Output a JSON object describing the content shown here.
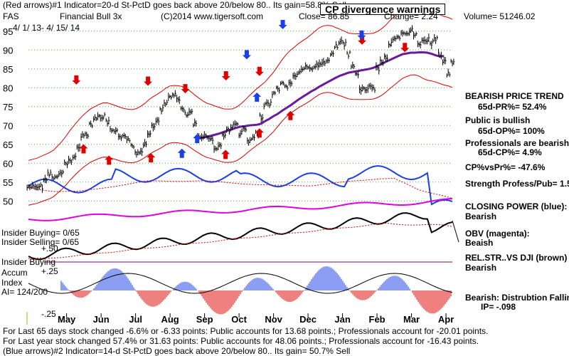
{
  "header": {
    "line1": "(Red arrows)#1 Indicator=20-d St-PctD goes back above 20/below 80.. Its gain=58.8% Sell",
    "symbol": "FAS",
    "name": "Financial Bull 3x",
    "copyright": "(C)2014 www.tigersoft.com",
    "close": "Close= 86.85",
    "change": "Change= 2.24",
    "volume": "Volume= 51246.02",
    "dates": "4/ 1/ 13- 4/ 15/ 14",
    "title_box": "CP divergence warnings"
  },
  "right_panel": {
    "trend_title": "BEARISH PRICE TREND",
    "pr": "65d-PR%= 52.4%",
    "public": "Public is bullish",
    "op": "65d-OP%= 100%",
    "professionals": "Professionals are bearish",
    "cp": "65d-CP%= 4.9%",
    "cpvspr": "CP%vsPr%= -47.6%",
    "strength": "Strength Profess/Pub= 1.5",
    "closing_power": "CLOSING POWER (blue):",
    "closing_power_value": "Bearish",
    "obv": "OBV (magenta):",
    "obv_value": "Beaish",
    "relstr": "REL.STR..VS DJI (brown)",
    "relstr_value": "Bearish",
    "distribution": "Bearish: Distrubtion Falling",
    "ip": "IP= -.098"
  },
  "left_labels": {
    "insider_buying": "Insider Buying= 0/65",
    "insider_selling": "Insider Selling= 0/65",
    "plus50": "+.50",
    "insider_buying2": "Insider Buying",
    "accum": "Accum",
    "plus25": "+.25",
    "index": "Index",
    "ai": "AI= 124/200",
    "minus25": "-.25"
  },
  "footer": {
    "line1": "For Last 65 days stock changed -6.6% or -6.33 points:  Public accounts for  13.68 points.;  Professionals account for -20.01 points.",
    "line2": "For Last year stock changed  57.4% or  31.63 points:  Public accounts for  48.06 points.;  Professionals account for -16.43 points.",
    "line3": "(Blue arrows)#2 Indicator=14-d St-PctD goes back above 20/below 80.. Its gain= 50.7% Sell"
  },
  "chart_data": {
    "type": "bar",
    "title": "CP divergence warnings",
    "ylim": [
      47,
      100
    ],
    "y_ticks": [
      50,
      55,
      60,
      65,
      70,
      75,
      80,
      85,
      90,
      95
    ],
    "x_months": [
      "May",
      "Jun",
      "Jul",
      "Aug",
      "Sep",
      "Oct",
      "Nov",
      "Dec",
      "Jan",
      "Feb",
      "Mar",
      "Apr"
    ],
    "grid": true,
    "price_close": [
      53.6,
      54.1,
      53.3,
      53.8,
      55.5,
      57.3,
      56.2,
      56.9,
      57.4,
      59.8,
      60.7,
      61.4,
      64.6,
      67.1,
      67.7,
      70.4,
      72.1,
      72.2,
      72.4,
      70.9,
      68.6,
      68.2,
      66.6,
      67.6,
      66.4,
      64.4,
      62.8,
      63.2,
      65.3,
      68.2,
      69.6,
      71.4,
      74.3,
      75.6,
      77.6,
      78.4,
      76.8,
      74.2,
      72.9,
      73.2,
      70.3,
      67.0,
      67.4,
      67.1,
      66.2,
      64.0,
      64.7,
      67.5,
      68.8,
      69.9,
      70.2,
      67.9,
      68.9,
      65.7,
      66.4,
      68.1,
      72.3,
      75.6,
      75.8,
      78.4,
      79.8,
      81.0,
      80.3,
      81.4,
      82.9,
      84.0,
      85.1,
      85.3,
      85.0,
      85.8,
      86.1,
      86.8,
      87.4,
      88.7,
      91.2,
      92.1,
      91.5,
      88.9,
      85.6,
      83.7,
      79.4,
      79.7,
      80.2,
      79.8,
      85.1,
      87.0,
      88.1,
      91.6,
      92.7,
      93.1,
      94.1,
      94.4,
      95.3,
      93.9,
      91.8,
      92.8,
      92.7,
      91.9,
      93.0,
      88.9,
      86.8,
      83.6,
      86.9
    ],
    "ma50": [
      null,
      null,
      null,
      null,
      null,
      null,
      null,
      null,
      null,
      null,
      null,
      null,
      null,
      null,
      null,
      null,
      null,
      null,
      null,
      null,
      null,
      null,
      null,
      null,
      null,
      null,
      null,
      null,
      null,
      null,
      null,
      null,
      null,
      null,
      null,
      null,
      null,
      null,
      null,
      null,
      null,
      66.7,
      66.8,
      67.0,
      67.3,
      67.6,
      67.9,
      68.3,
      68.7,
      69.0,
      69.4,
      69.7,
      69.8,
      70.0,
      70.1,
      70.2,
      70.5,
      71.2,
      71.8,
      72.5,
      73.1,
      73.9,
      74.6,
      75.3,
      76.1,
      76.9,
      77.6,
      78.3,
      79.0,
      79.6,
      80.3,
      80.9,
      81.5,
      82.1,
      82.7,
      83.2,
      83.6,
      84.0,
      84.2,
      84.4,
      84.6,
      84.8,
      85.0,
      85.3,
      85.8,
      86.3,
      86.9,
      87.4,
      87.9,
      88.4,
      88.9,
      89.1,
      89.3,
      89.3,
      89.4,
      89.4,
      89.3,
      89.0,
      88.6,
      88.3,
      88.4
    ],
    "signals": {
      "red_down_x": [
        0.113,
        0.282,
        0.37,
        0.466,
        0.545,
        0.787,
        0.888
      ],
      "red_up_x": [
        0.13,
        0.19,
        0.289,
        0.465,
        0.545,
        0.618
      ],
      "blue_down_x": [
        0.515,
        0.6,
        0.786
      ],
      "blue_up_x": [
        0.362,
        0.398,
        0.539
      ],
      "red_down_y": [
        81.4,
        81.1,
        79.1,
        82.5,
        83.7,
        92.0,
        90.0
      ],
      "red_up_y": [
        64.5,
        61.5,
        62.1,
        63.0,
        68.7,
        73.3
      ],
      "blue_down_y": [
        88.1,
        96.1,
        93.3
      ],
      "blue_up_y": [
        63.3,
        67.2,
        78.2
      ]
    }
  }
}
